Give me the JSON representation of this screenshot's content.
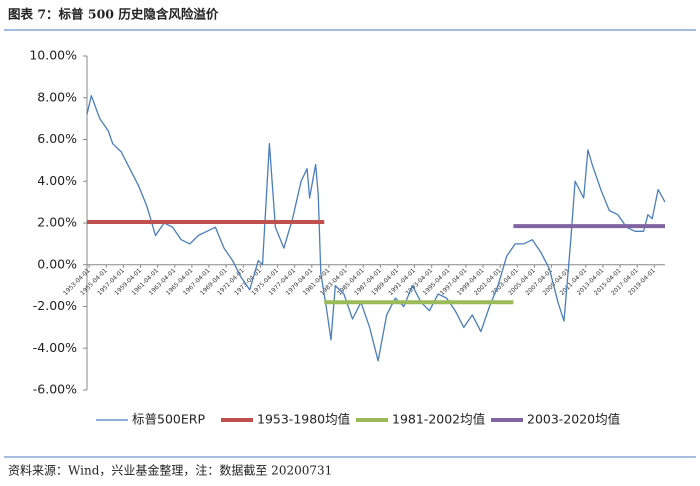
{
  "chart_data": {
    "type": "line",
    "title": "图表 7：标普 500 历史隐含风险溢价",
    "source": "资料来源：Wind，兴业基金整理，注：数据截至 20200731",
    "ylim": [
      -6,
      10
    ],
    "yticks": [
      {
        "value": -6,
        "label": "-6.00%"
      },
      {
        "value": -4,
        "label": "-4.00%"
      },
      {
        "value": -2,
        "label": "-2.00%"
      },
      {
        "value": 0,
        "label": "0.00%"
      },
      {
        "value": 2,
        "label": "2.00%"
      },
      {
        "value": 4,
        "label": "4.00%"
      },
      {
        "value": 6,
        "label": "6.00%"
      },
      {
        "value": 8,
        "label": "8.00%"
      },
      {
        "value": 10,
        "label": "10.00%"
      }
    ],
    "xlim": [
      1953,
      2020.5
    ],
    "xticks": [
      {
        "value": 1953.25,
        "label": "1953-04-01"
      },
      {
        "value": 1955.25,
        "label": "1955-04-01"
      },
      {
        "value": 1957.25,
        "label": "1957-04-01"
      },
      {
        "value": 1959.25,
        "label": "1959-04-01"
      },
      {
        "value": 1961.25,
        "label": "1961-04-01"
      },
      {
        "value": 1963.25,
        "label": "1963-04-01"
      },
      {
        "value": 1965.25,
        "label": "1965-04-01"
      },
      {
        "value": 1967.25,
        "label": "1967-04-01"
      },
      {
        "value": 1969.25,
        "label": "1969-04-01"
      },
      {
        "value": 1971.25,
        "label": "1971-04-01"
      },
      {
        "value": 1973.25,
        "label": "1973-04-01"
      },
      {
        "value": 1975.25,
        "label": "1975-04-01"
      },
      {
        "value": 1977.25,
        "label": "1977-04-01"
      },
      {
        "value": 1979.25,
        "label": "1979-04-01"
      },
      {
        "value": 1981.25,
        "label": "1981-04-01"
      },
      {
        "value": 1983.25,
        "label": "1983-04-01"
      },
      {
        "value": 1985.25,
        "label": "1985-04-01"
      },
      {
        "value": 1987.25,
        "label": "1987-04-01"
      },
      {
        "value": 1989.25,
        "label": "1989-04-01"
      },
      {
        "value": 1991.25,
        "label": "1991-04-01"
      },
      {
        "value": 1993.25,
        "label": "1993-04-01"
      },
      {
        "value": 1995.25,
        "label": "1995-04-01"
      },
      {
        "value": 1997.25,
        "label": "1997-04-01"
      },
      {
        "value": 1999.25,
        "label": "1999-04-01"
      },
      {
        "value": 2001.25,
        "label": "2001-04-01"
      },
      {
        "value": 2003.25,
        "label": "2003-04-01"
      },
      {
        "value": 2005.25,
        "label": "2005-04-01"
      },
      {
        "value": 2007.25,
        "label": "2007-04-01"
      },
      {
        "value": 2009.25,
        "label": "2009-04-01"
      },
      {
        "value": 2011.25,
        "label": "2011-04-01"
      },
      {
        "value": 2013.25,
        "label": "2013-04-01"
      },
      {
        "value": 2015.25,
        "label": "2015-04-01"
      },
      {
        "value": 2017.25,
        "label": "2017-04-01"
      },
      {
        "value": 2019.25,
        "label": "2019-04-01"
      }
    ],
    "series": [
      {
        "name": "标普500ERP",
        "color": "#4a7ebb",
        "width": 1.3,
        "x": [
          1953,
          1953.5,
          1954.5,
          1955.5,
          1956,
          1957,
          1958,
          1959,
          1960,
          1961,
          1962,
          1963,
          1964,
          1965,
          1966,
          1967,
          1968,
          1969,
          1970,
          1971,
          1972,
          1973,
          1973.5,
          1974.3,
          1975,
          1976,
          1977,
          1978,
          1978.7,
          1979,
          1979.7,
          1980,
          1980.3,
          1981,
          1981.5,
          1982,
          1983,
          1984,
          1985,
          1986,
          1987,
          1988,
          1989,
          1990,
          1991,
          1992,
          1993,
          1994,
          1995,
          1996,
          1997,
          1998,
          1999,
          2000,
          2001,
          2002,
          2003,
          2004,
          2005,
          2006,
          2007,
          2008,
          2008.7,
          2009.5,
          2010,
          2011,
          2011.5,
          2012,
          2013,
          2014,
          2015,
          2016,
          2017,
          2018,
          2018.5,
          2019,
          2019.7,
          2020.5
        ],
        "values": [
          7.2,
          8.1,
          7.0,
          6.4,
          5.8,
          5.4,
          4.6,
          3.8,
          2.8,
          1.4,
          2.0,
          1.8,
          1.2,
          1.0,
          1.4,
          1.6,
          1.8,
          0.8,
          0.2,
          -0.6,
          -1.2,
          0.2,
          0.0,
          5.8,
          1.8,
          0.8,
          2.2,
          4.0,
          4.6,
          3.2,
          4.8,
          3.4,
          -0.4,
          -2.2,
          -3.6,
          -1.0,
          -1.4,
          -2.6,
          -1.8,
          -3.0,
          -4.6,
          -2.4,
          -1.6,
          -2.0,
          -1.0,
          -1.8,
          -2.2,
          -1.4,
          -1.6,
          -2.2,
          -3.0,
          -2.4,
          -3.2,
          -2.0,
          -1.0,
          0.4,
          1.0,
          1.0,
          1.2,
          0.6,
          -0.2,
          -1.8,
          -2.7,
          1.2,
          4.0,
          3.2,
          5.5,
          4.8,
          3.6,
          2.6,
          2.4,
          1.8,
          1.6,
          1.6,
          2.4,
          2.2,
          3.6,
          3.0
        ]
      },
      {
        "name": "1953-1980均值",
        "color": "#c0504d",
        "width": 4,
        "x": [
          1953,
          1980.7
        ],
        "values": [
          2.05,
          2.05
        ]
      },
      {
        "name": "1981-2002均值",
        "color": "#9bbb59",
        "width": 4,
        "x": [
          1980.7,
          2002.8
        ],
        "values": [
          -1.8,
          -1.8
        ]
      },
      {
        "name": "2003-2020均值",
        "color": "#8064a2",
        "width": 4,
        "x": [
          2002.8,
          2020.5
        ],
        "values": [
          1.85,
          1.85
        ]
      }
    ]
  }
}
